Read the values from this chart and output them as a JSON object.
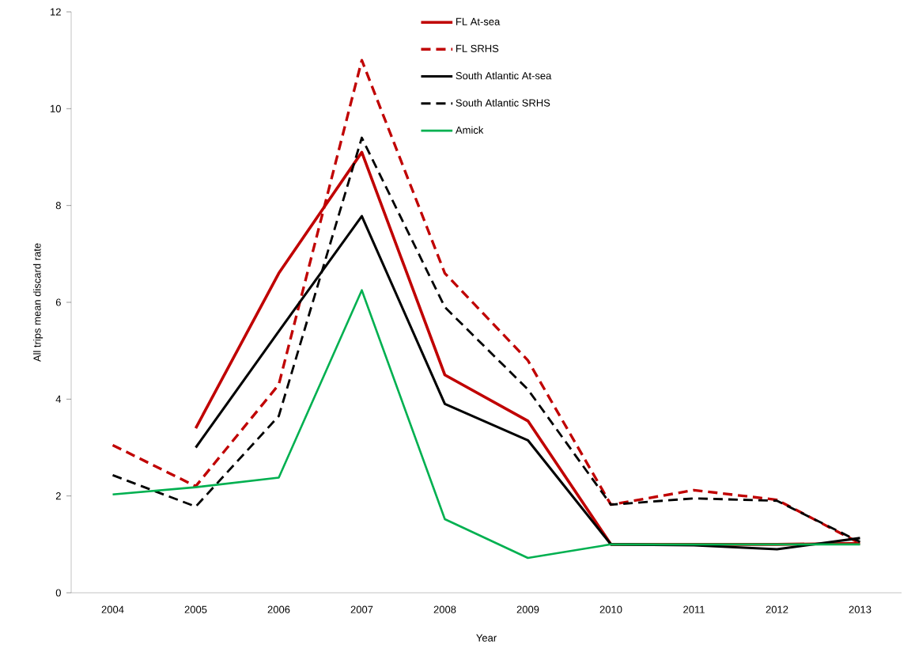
{
  "chart_data": {
    "type": "line",
    "xlabel": "Year",
    "ylabel": "All trips mean discard rate",
    "categories": [
      "2004",
      "2005",
      "2006",
      "2007",
      "2008",
      "2009",
      "2010",
      "2011",
      "2012",
      "2013"
    ],
    "ylim": [
      0,
      12
    ],
    "yticks": [
      0,
      2,
      4,
      6,
      8,
      10,
      12
    ],
    "grid": false,
    "legend": "top",
    "marker": "none",
    "series": [
      {
        "name": "FL At-sea",
        "color": "#c00000",
        "line_style": "solid",
        "values": [
          null,
          3.4,
          6.6,
          9.1,
          4.5,
          3.55,
          1.0,
          1.0,
          1.0,
          1.02
        ]
      },
      {
        "name": "FL SRHS",
        "color": "#c00000",
        "line_style": "dashed",
        "values": [
          3.05,
          2.2,
          4.3,
          11.0,
          6.6,
          4.8,
          1.82,
          2.12,
          1.92,
          1.02
        ]
      },
      {
        "name": "South Atlantic At-sea",
        "color": "#000000",
        "line_style": "solid",
        "values": [
          null,
          3.0,
          5.4,
          7.78,
          3.9,
          3.15,
          1.0,
          0.98,
          0.9,
          1.13
        ]
      },
      {
        "name": "South Atlantic SRHS",
        "color": "#000000",
        "line_style": "dashed",
        "values": [
          2.43,
          1.78,
          3.65,
          9.4,
          5.9,
          4.2,
          1.82,
          1.95,
          1.9,
          1.05
        ]
      },
      {
        "name": "Amick",
        "color": "#00b050",
        "line_style": "solid",
        "values": [
          2.03,
          2.18,
          2.38,
          6.25,
          1.52,
          0.72,
          1.0,
          1.0,
          1.0,
          1.0
        ]
      }
    ]
  }
}
